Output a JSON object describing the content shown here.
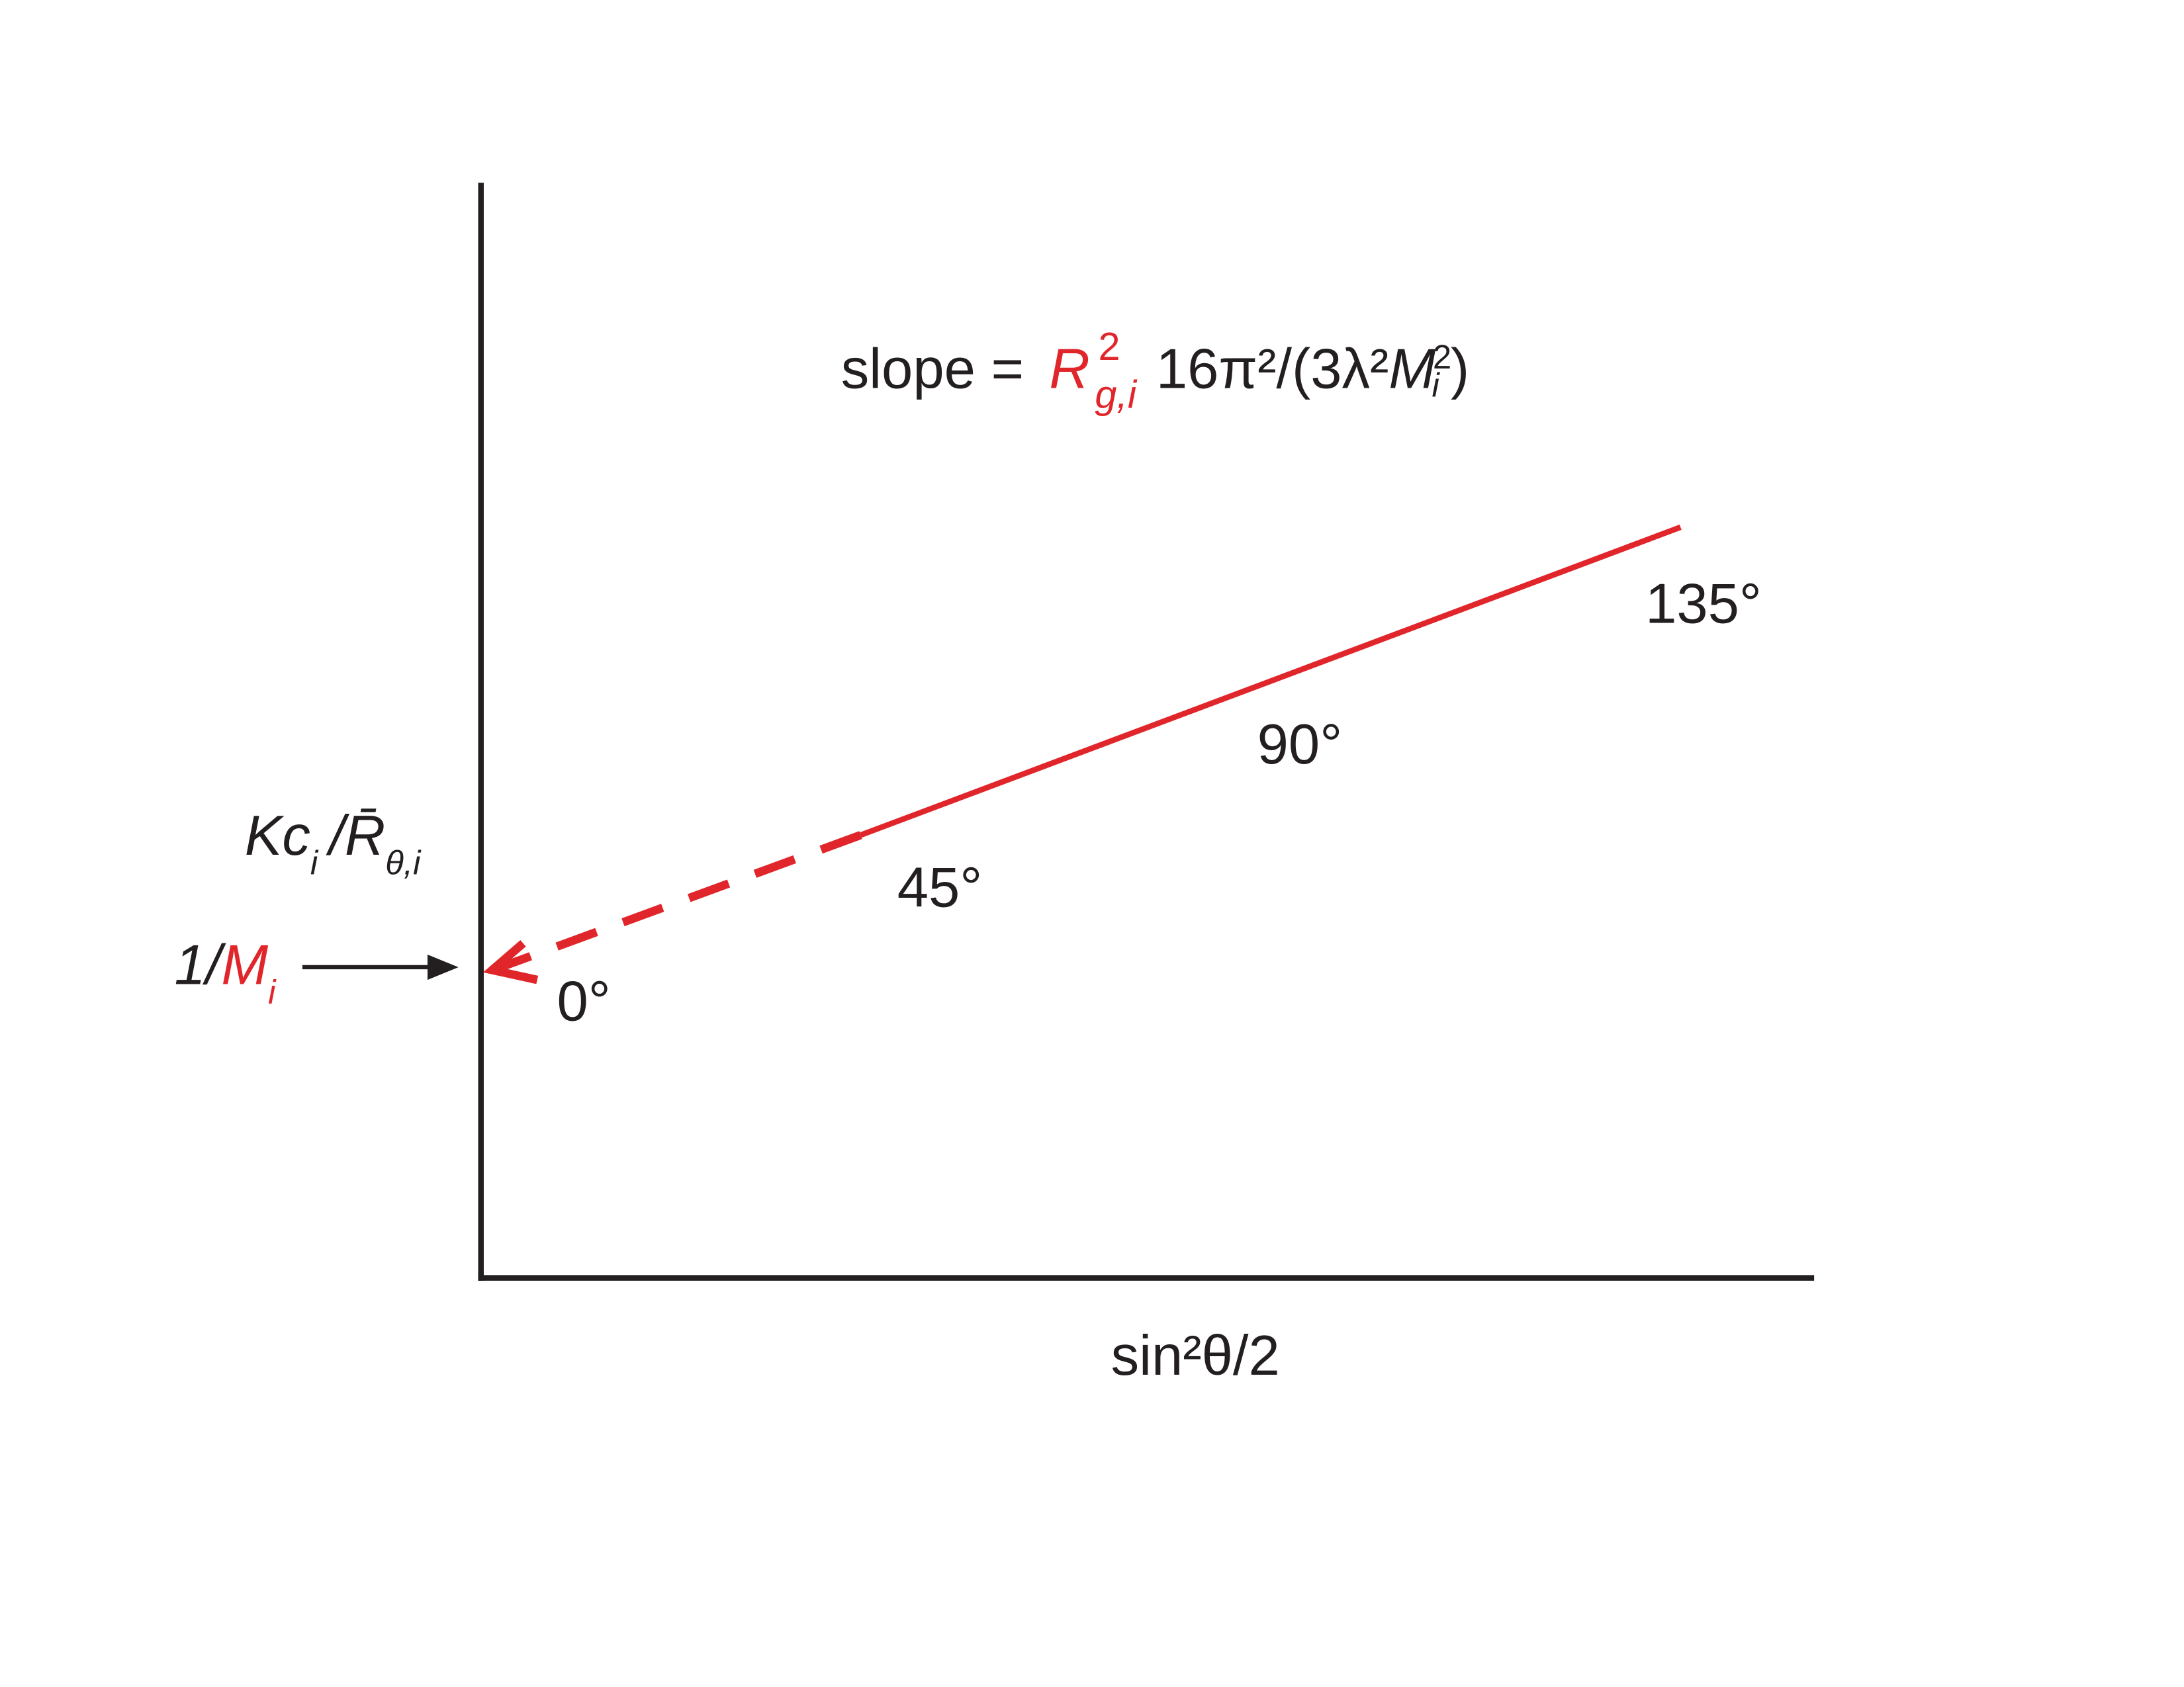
{
  "slope": {
    "prefix": "slope =",
    "symbol": "R",
    "symbol_sup": "2",
    "symbol_sub": "g,i",
    "rest": "16π²/(3λ²",
    "mass": "M",
    "mass_sup": "2",
    "mass_sub": "i",
    "close": ")"
  },
  "y_label": {
    "k": "Kc",
    "k_sub": "i",
    "slash": "/",
    "r": "R̄",
    "r_sub": "θ,i"
  },
  "intercept": {
    "prefix": "1/",
    "mass": "M",
    "mass_sub": "i"
  },
  "angles": [
    "0°",
    "45°",
    "90°",
    "135°"
  ],
  "x_label": "sin²θ/2"
}
